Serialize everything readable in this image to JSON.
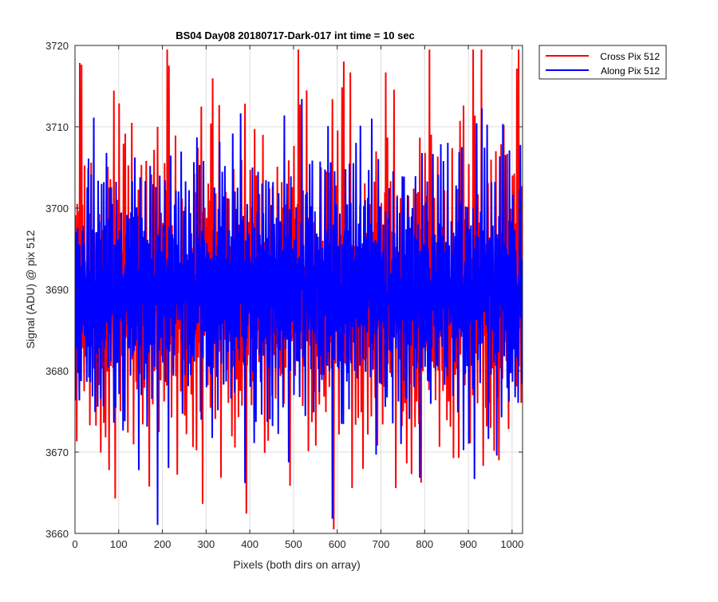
{
  "chart_data": {
    "type": "line",
    "title": "BS04 Day08 20180717-Dark-017 int time = 10 sec",
    "xlabel": "Pixels (both dirs on array)",
    "ylabel": "Signal (ADU) @ pix 512",
    "xlim": [
      0,
      1024
    ],
    "ylim": [
      3660,
      3720
    ],
    "xticks": [
      0,
      100,
      200,
      300,
      400,
      500,
      600,
      700,
      800,
      900,
      1000
    ],
    "yticks": [
      3660,
      3670,
      3680,
      3690,
      3700,
      3710,
      3720
    ],
    "grid": true,
    "legend_position": "outside top-right",
    "x": {
      "start": 0,
      "end": 1023,
      "step": 1
    },
    "series": [
      {
        "name": "Cross Pix 512",
        "color": "#ff0000",
        "mean": 3689.5,
        "values": [
          3688,
          3710,
          3682,
          3695,
          3676,
          3701,
          3680,
          3692,
          3686,
          3699,
          3678,
          3717,
          3685,
          3690,
          3693,
          3717,
          3684,
          3697,
          3681,
          3692,
          3689,
          3676,
          3703,
          3686,
          3694,
          3680,
          3698,
          3685,
          3691,
          3687,
          3714,
          3682,
          3689,
          3696,
          3668,
          3690,
          3684,
          3702,
          3687,
          3693,
          3680,
          3697,
          3676,
          3691,
          3687,
          3702,
          3685,
          3690,
          3677,
          3695,
          3688,
          3675,
          3703,
          3684,
          3692,
          3677,
          3699,
          3683,
          3690,
          3669,
          3688,
          3695,
          3681,
          3706,
          3685,
          3692,
          3675,
          3697,
          3689,
          3682,
          3669,
          3692,
          3687,
          3700,
          3679,
          3705,
          3684,
          3690,
          3673,
          3695,
          3690,
          3708,
          3678,
          3696,
          3684,
          3701,
          3687,
          3677,
          3693,
          3712,
          3682,
          3690,
          3666,
          3698,
          3684,
          3692,
          3680,
          3701,
          3688,
          3686
        ]
      },
      {
        "name": "Along Pix 512",
        "color": "#0000ff",
        "mean": 3689.8,
        "values": [
          3694,
          3675,
          3698,
          3683,
          3691,
          3687,
          3702,
          3679,
          3693,
          3688,
          3676,
          3697,
          3685,
          3690,
          3671,
          3696,
          3684,
          3700,
          3689,
          3707,
          3686,
          3693,
          3680,
          3698,
          3687,
          3681,
          3694,
          3678,
          3701,
          3689,
          3685,
          3706,
          3683,
          3692,
          3697,
          3680,
          3690,
          3704,
          3686,
          3695,
          3678,
          3698,
          3688,
          3708,
          3682,
          3691,
          3670,
          3696,
          3687,
          3700,
          3683,
          3693,
          3677,
          3705,
          3689,
          3686,
          3698,
          3681,
          3694,
          3679,
          3688,
          3708,
          3683,
          3690,
          3697,
          3674,
          3702,
          3686,
          3693,
          3681,
          3699,
          3688,
          3707,
          3684,
          3691,
          3694,
          3678,
          3696,
          3689,
          3711,
          3685,
          3692,
          3680,
          3699,
          3687,
          3703,
          3683,
          3695,
          3690,
          3663,
          3698,
          3686,
          3692,
          3680,
          3704,
          3688,
          3694,
          3681,
          3697,
          3689
        ]
      }
    ]
  }
}
